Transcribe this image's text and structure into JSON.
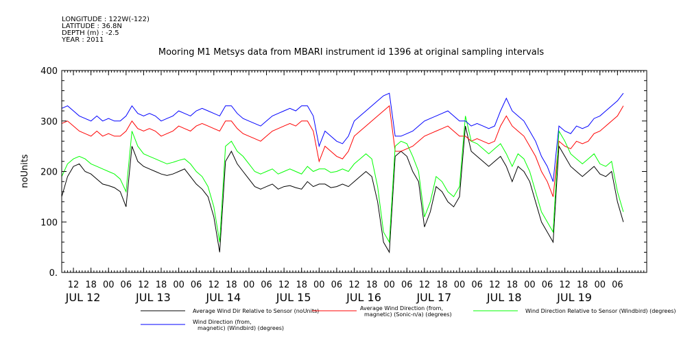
{
  "header": {
    "longitude": "LONGITUDE : 122W(-122)",
    "latitude": "LATITUDE : 36.8N",
    "depth": "DEPTH (m) : -2.5",
    "year": "YEAR : 2011"
  },
  "chart_data": {
    "type": "line",
    "title": "Mooring M1 Metsys data from MBARI instrument id 1396 at original sampling intervals",
    "ylabel": "noUnits",
    "xlabel": "",
    "ylim": [
      0,
      400
    ],
    "yticks": [
      "0.",
      "100",
      "200",
      "300",
      "400"
    ],
    "xlim_hours": [
      0,
      200
    ],
    "x_hour_ticks": [
      {
        "h": 4,
        "label": "12"
      },
      {
        "h": 10,
        "label": "18"
      },
      {
        "h": 16,
        "label": "00"
      },
      {
        "h": 22,
        "label": "06"
      },
      {
        "h": 28,
        "label": "12"
      },
      {
        "h": 34,
        "label": "18"
      },
      {
        "h": 40,
        "label": "00"
      },
      {
        "h": 46,
        "label": "06"
      },
      {
        "h": 52,
        "label": "12"
      },
      {
        "h": 58,
        "label": "18"
      },
      {
        "h": 64,
        "label": "00"
      },
      {
        "h": 70,
        "label": "06"
      },
      {
        "h": 76,
        "label": "12"
      },
      {
        "h": 82,
        "label": "18"
      },
      {
        "h": 88,
        "label": "00"
      },
      {
        "h": 94,
        "label": "06"
      },
      {
        "h": 100,
        "label": "12"
      },
      {
        "h": 106,
        "label": "18"
      },
      {
        "h": 112,
        "label": "00"
      },
      {
        "h": 118,
        "label": "06"
      },
      {
        "h": 124,
        "label": "12"
      },
      {
        "h": 130,
        "label": "18"
      },
      {
        "h": 136,
        "label": "00"
      },
      {
        "h": 142,
        "label": "06"
      },
      {
        "h": 148,
        "label": "12"
      },
      {
        "h": 154,
        "label": "18"
      },
      {
        "h": 160,
        "label": "00"
      },
      {
        "h": 166,
        "label": "06"
      },
      {
        "h": 172,
        "label": "12"
      },
      {
        "h": 178,
        "label": "18"
      },
      {
        "h": 184,
        "label": "00"
      },
      {
        "h": 190,
        "label": "06"
      }
    ],
    "day_labels": [
      {
        "h": 4,
        "label": "JUL 12"
      },
      {
        "h": 28,
        "label": "JUL 13"
      },
      {
        "h": 52,
        "label": "JUL 14"
      },
      {
        "h": 76,
        "label": "JUL 15"
      },
      {
        "h": 100,
        "label": "JUL 16"
      },
      {
        "h": 124,
        "label": "JUL 17"
      },
      {
        "h": 148,
        "label": "JUL 18"
      },
      {
        "h": 172,
        "label": "JUL 19"
      }
    ],
    "series": [
      {
        "name": "Average Wind Dir Relative to Sensor (noUnits)",
        "color": "#000000",
        "x": [
          0,
          2,
          4,
          6,
          8,
          10,
          12,
          14,
          16,
          18,
          20,
          22,
          24,
          26,
          28,
          30,
          32,
          34,
          36,
          38,
          40,
          42,
          44,
          46,
          48,
          50,
          52,
          54,
          56,
          58,
          60,
          62,
          64,
          66,
          68,
          70,
          72,
          74,
          76,
          78,
          80,
          82,
          84,
          86,
          88,
          90,
          92,
          94,
          96,
          98,
          100,
          102,
          104,
          106,
          108,
          110,
          112,
          114,
          116,
          118,
          120,
          122,
          124,
          126,
          128,
          130,
          132,
          134,
          136,
          138,
          140,
          142,
          144,
          146,
          148,
          150,
          152,
          154,
          156,
          158,
          160,
          162,
          164,
          166,
          168,
          170,
          172,
          174,
          176,
          178,
          180,
          182,
          184,
          186,
          188,
          190,
          192
        ],
        "y": [
          150,
          190,
          210,
          215,
          200,
          195,
          185,
          175,
          172,
          168,
          160,
          130,
          250,
          220,
          210,
          205,
          200,
          195,
          192,
          195,
          200,
          205,
          190,
          175,
          165,
          150,
          110,
          40,
          220,
          240,
          215,
          200,
          185,
          170,
          165,
          170,
          175,
          165,
          170,
          172,
          168,
          165,
          180,
          170,
          175,
          175,
          168,
          170,
          175,
          170,
          180,
          190,
          200,
          190,
          140,
          60,
          40,
          230,
          240,
          230,
          200,
          180,
          90,
          120,
          170,
          160,
          140,
          130,
          150,
          290,
          240,
          230,
          220,
          210,
          220,
          230,
          210,
          180,
          210,
          200,
          180,
          140,
          100,
          80,
          60,
          250,
          230,
          210,
          200,
          190,
          200,
          210,
          195,
          190,
          200,
          140,
          100
        ]
      },
      {
        "name": "Average Wind Direction (from, magnetic) (Sonic-n/a) (degrees)",
        "color": "#ff0000",
        "x": [
          0,
          2,
          4,
          6,
          8,
          10,
          12,
          14,
          16,
          18,
          20,
          22,
          24,
          26,
          28,
          30,
          32,
          34,
          36,
          38,
          40,
          42,
          44,
          46,
          48,
          50,
          52,
          54,
          56,
          58,
          60,
          62,
          64,
          66,
          68,
          70,
          72,
          74,
          76,
          78,
          80,
          82,
          84,
          86,
          88,
          90,
          92,
          94,
          96,
          98,
          100,
          102,
          104,
          106,
          108,
          110,
          112,
          114,
          116,
          118,
          120,
          122,
          124,
          126,
          128,
          130,
          132,
          134,
          136,
          138,
          140,
          142,
          144,
          146,
          148,
          150,
          152,
          154,
          156,
          158,
          160,
          162,
          164,
          166,
          168,
          170,
          172,
          174,
          176,
          178,
          180,
          182,
          184,
          186,
          188,
          190,
          192
        ],
        "y": [
          295,
          300,
          290,
          280,
          275,
          270,
          280,
          270,
          275,
          270,
          270,
          280,
          300,
          285,
          280,
          285,
          280,
          270,
          275,
          280,
          290,
          285,
          280,
          290,
          295,
          290,
          285,
          280,
          300,
          300,
          285,
          275,
          270,
          265,
          260,
          270,
          280,
          285,
          290,
          295,
          290,
          300,
          300,
          280,
          220,
          250,
          240,
          230,
          225,
          240,
          270,
          280,
          290,
          300,
          310,
          320,
          330,
          240,
          240,
          245,
          250,
          260,
          270,
          275,
          280,
          285,
          290,
          280,
          270,
          270,
          260,
          265,
          260,
          255,
          260,
          290,
          310,
          290,
          280,
          270,
          250,
          230,
          200,
          180,
          150,
          260,
          250,
          245,
          260,
          255,
          260,
          275,
          280,
          290,
          300,
          310,
          330
        ]
      },
      {
        "name": "Wind Direction Relative to Sensor (Windbird) (degrees)",
        "color": "#00ff00",
        "x": [
          0,
          2,
          4,
          6,
          8,
          10,
          12,
          14,
          16,
          18,
          20,
          22,
          24,
          26,
          28,
          30,
          32,
          34,
          36,
          38,
          40,
          42,
          44,
          46,
          48,
          50,
          52,
          54,
          56,
          58,
          60,
          62,
          64,
          66,
          68,
          70,
          72,
          74,
          76,
          78,
          80,
          82,
          84,
          86,
          88,
          90,
          92,
          94,
          96,
          98,
          100,
          102,
          104,
          106,
          108,
          110,
          112,
          114,
          116,
          118,
          120,
          122,
          124,
          126,
          128,
          130,
          132,
          134,
          136,
          138,
          140,
          142,
          144,
          146,
          148,
          150,
          152,
          154,
          156,
          158,
          160,
          162,
          164,
          166,
          168,
          170,
          172,
          174,
          176,
          178,
          180,
          182,
          184,
          186,
          188,
          190,
          192
        ],
        "y": [
          190,
          215,
          225,
          230,
          225,
          215,
          210,
          205,
          200,
          195,
          185,
          160,
          280,
          250,
          235,
          230,
          225,
          220,
          215,
          218,
          222,
          225,
          215,
          200,
          190,
          170,
          130,
          60,
          250,
          260,
          240,
          230,
          215,
          200,
          195,
          200,
          205,
          195,
          200,
          205,
          200,
          195,
          210,
          200,
          205,
          205,
          198,
          200,
          205,
          200,
          215,
          225,
          235,
          225,
          170,
          80,
          60,
          250,
          260,
          255,
          230,
          200,
          110,
          140,
          190,
          180,
          160,
          150,
          170,
          310,
          260,
          255,
          245,
          235,
          245,
          255,
          235,
          210,
          235,
          225,
          200,
          160,
          120,
          100,
          80,
          280,
          260,
          235,
          225,
          215,
          225,
          235,
          215,
          210,
          220,
          160,
          120
        ]
      },
      {
        "name": "Wind Direction (from, magnetic) (Windbird) (degrees)",
        "color": "#0000ff",
        "x": [
          0,
          2,
          4,
          6,
          8,
          10,
          12,
          14,
          16,
          18,
          20,
          22,
          24,
          26,
          28,
          30,
          32,
          34,
          36,
          38,
          40,
          42,
          44,
          46,
          48,
          50,
          52,
          54,
          56,
          58,
          60,
          62,
          64,
          66,
          68,
          70,
          72,
          74,
          76,
          78,
          80,
          82,
          84,
          86,
          88,
          90,
          92,
          94,
          96,
          98,
          100,
          102,
          104,
          106,
          108,
          110,
          112,
          114,
          116,
          118,
          120,
          122,
          124,
          126,
          128,
          130,
          132,
          134,
          136,
          138,
          140,
          142,
          144,
          146,
          148,
          150,
          152,
          154,
          156,
          158,
          160,
          162,
          164,
          166,
          168,
          170,
          172,
          174,
          176,
          178,
          180,
          182,
          184,
          186,
          188,
          190,
          192
        ],
        "y": [
          325,
          330,
          320,
          310,
          305,
          300,
          310,
          300,
          305,
          300,
          300,
          310,
          330,
          315,
          310,
          315,
          310,
          300,
          305,
          310,
          320,
          315,
          310,
          320,
          325,
          320,
          315,
          310,
          330,
          330,
          315,
          305,
          300,
          295,
          290,
          300,
          310,
          315,
          320,
          325,
          320,
          330,
          330,
          310,
          250,
          280,
          270,
          260,
          255,
          270,
          300,
          310,
          320,
          330,
          340,
          350,
          355,
          270,
          270,
          275,
          280,
          290,
          300,
          305,
          310,
          315,
          320,
          310,
          300,
          300,
          290,
          295,
          290,
          285,
          290,
          320,
          345,
          320,
          310,
          300,
          280,
          260,
          230,
          210,
          180,
          290,
          280,
          275,
          290,
          285,
          290,
          305,
          310,
          320,
          330,
          340,
          355
        ]
      }
    ],
    "legend": [
      {
        "label": "Average Wind Dir Relative to Sensor (noUnits)",
        "color": "#000000"
      },
      {
        "label1": "Average Wind Direction (from,",
        "label2": "magnetic) (Sonic-n/a) (degrees)",
        "color": "#ff0000"
      },
      {
        "label": "Wind Direction Relative to Sensor (Windbird) (degrees)",
        "color": "#00ff00"
      },
      {
        "label1": "Wind Direction (from,",
        "label2": "magnetic) (Windbird) (degrees)",
        "color": "#0000ff"
      }
    ]
  }
}
